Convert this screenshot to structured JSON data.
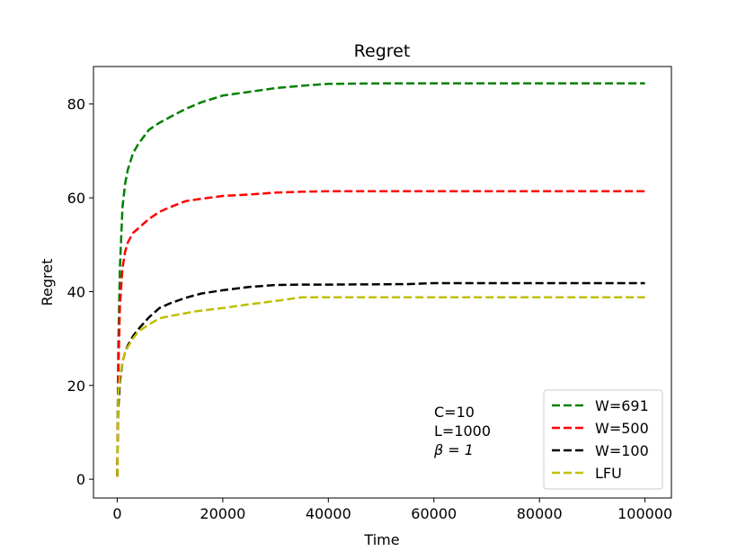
{
  "chart_data": {
    "type": "line",
    "title": "Regret",
    "xlabel": "Time",
    "ylabel": "Regret",
    "xlim": [
      -4500,
      105000
    ],
    "ylim": [
      -4,
      88
    ],
    "xticks": [
      0,
      20000,
      40000,
      60000,
      80000,
      100000
    ],
    "yticks": [
      0,
      20,
      40,
      60,
      80
    ],
    "grid": false,
    "legend_position": "lower right",
    "annotation": [
      "C=10",
      "L=1000",
      "β = 1"
    ],
    "series": [
      {
        "name": "W=691",
        "color": "#008000",
        "dash": "dashed",
        "x": [
          0,
          200,
          500,
          1000,
          1500,
          2000,
          3000,
          4000,
          5000,
          6000,
          8000,
          10000,
          13000,
          16000,
          20000,
          25000,
          30000,
          35000,
          40000,
          50000,
          60000,
          80000,
          100000
        ],
        "y": [
          0.5,
          28,
          45,
          58,
          63,
          66,
          69.5,
          71.5,
          73,
          74.5,
          76,
          77.2,
          79,
          80.4,
          81.8,
          82.6,
          83.4,
          83.9,
          84.3,
          84.4,
          84.4,
          84.4,
          84.4
        ]
      },
      {
        "name": "W=500",
        "color": "#ff0000",
        "dash": "dashed",
        "x": [
          0,
          200,
          500,
          1000,
          1500,
          2000,
          3000,
          4000,
          6000,
          8000,
          10000,
          13000,
          16000,
          20000,
          25000,
          30000,
          35000,
          40000,
          60000,
          80000,
          100000
        ],
        "y": [
          0.5,
          22,
          37,
          45,
          48.5,
          50.5,
          52.5,
          53.5,
          55.5,
          57,
          58,
          59.3,
          59.8,
          60.4,
          60.7,
          61.1,
          61.3,
          61.4,
          61.4,
          61.4,
          61.4
        ]
      },
      {
        "name": "W=100",
        "color": "#000000",
        "dash": "dashed",
        "x": [
          0,
          200,
          500,
          1000,
          1500,
          2000,
          3000,
          4000,
          6000,
          8000,
          10000,
          13000,
          16000,
          20000,
          25000,
          30000,
          35000,
          40000,
          55000,
          60000,
          80000,
          100000
        ],
        "y": [
          0.5,
          15,
          21,
          25,
          27,
          28.5,
          30.5,
          32,
          34.5,
          36.5,
          37.5,
          38.7,
          39.6,
          40.3,
          41,
          41.4,
          41.5,
          41.5,
          41.6,
          41.8,
          41.8,
          41.8
        ]
      },
      {
        "name": "LFU",
        "color": "#bfbf00",
        "dash": "dashed",
        "x": [
          0,
          200,
          500,
          1000,
          1500,
          2000,
          3000,
          4000,
          6000,
          8000,
          10000,
          15000,
          20000,
          25000,
          30000,
          35000,
          40000,
          60000,
          80000,
          100000
        ],
        "y": [
          0.5,
          18,
          22,
          25,
          27,
          28.2,
          30,
          31.5,
          33,
          34.3,
          34.8,
          35.8,
          36.5,
          37.3,
          38,
          38.8,
          38.8,
          38.8,
          38.8,
          38.8
        ]
      }
    ]
  }
}
